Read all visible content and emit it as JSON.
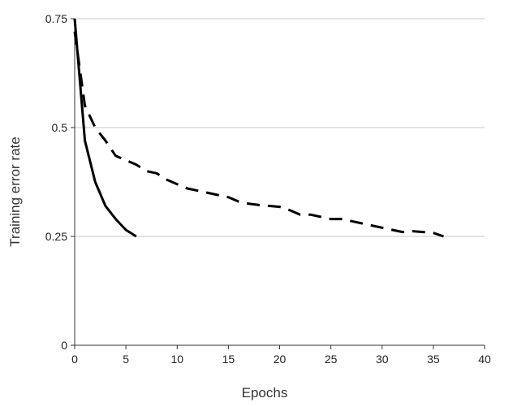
{
  "chart_data": {
    "type": "line",
    "title": "",
    "xlabel": "Epochs",
    "ylabel": "Training error rate",
    "xlim": [
      0,
      40
    ],
    "ylim": [
      0,
      0.75
    ],
    "x_ticks": [
      0,
      5,
      10,
      15,
      20,
      25,
      30,
      35,
      40
    ],
    "y_ticks": [
      0,
      0.25,
      0.5,
      0.75
    ],
    "x_tick_labels": [
      "0",
      "5",
      "10",
      "15",
      "20",
      "25",
      "30",
      "35",
      "40"
    ],
    "y_tick_labels": [
      "0",
      "0.25",
      "0.5",
      "0.75"
    ],
    "grid": "horizontal",
    "legend": "none",
    "series": [
      {
        "style": "solid",
        "color": "#000000",
        "x": [
          0,
          1,
          2,
          3,
          4,
          5,
          6
        ],
        "y": [
          0.75,
          0.47,
          0.375,
          0.32,
          0.29,
          0.265,
          0.25
        ]
      },
      {
        "style": "dashed",
        "color": "#000000",
        "x": [
          0,
          1,
          2,
          3,
          4,
          5,
          6,
          7,
          8,
          9,
          10,
          11,
          12,
          13,
          14,
          15,
          16,
          17,
          18,
          19,
          20,
          21,
          22,
          23,
          24,
          25,
          26,
          27,
          28,
          29,
          30,
          31,
          32,
          33,
          34,
          35,
          36
        ],
        "y": [
          0.72,
          0.55,
          0.5,
          0.47,
          0.435,
          0.425,
          0.415,
          0.4,
          0.395,
          0.38,
          0.37,
          0.36,
          0.355,
          0.35,
          0.345,
          0.34,
          0.33,
          0.325,
          0.322,
          0.32,
          0.318,
          0.31,
          0.3,
          0.3,
          0.295,
          0.29,
          0.29,
          0.285,
          0.28,
          0.275,
          0.27,
          0.265,
          0.26,
          0.262,
          0.26,
          0.258,
          0.25
        ]
      }
    ]
  }
}
